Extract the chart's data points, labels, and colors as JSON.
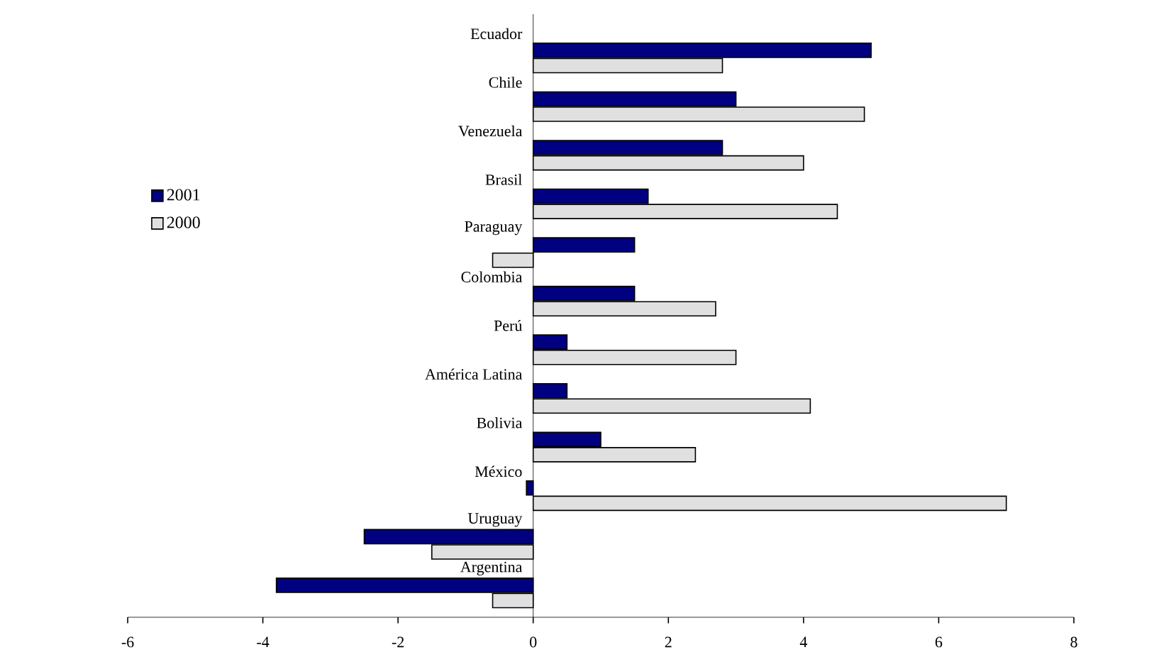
{
  "chart_data": {
    "type": "bar",
    "orientation": "horizontal",
    "categories": [
      "Ecuador",
      "Chile",
      "Venezuela",
      "Brasil",
      "Paraguay",
      "Colombia",
      "Perú",
      "América Latina",
      "Bolivia",
      "México",
      "Uruguay",
      "Argentina"
    ],
    "series": [
      {
        "name": "2001",
        "color": "#000080",
        "values": [
          5.0,
          3.0,
          2.8,
          1.7,
          1.5,
          1.5,
          0.5,
          0.5,
          1.0,
          -0.1,
          -2.5,
          -3.8
        ]
      },
      {
        "name": "2000",
        "color": "#e0e0e0",
        "values": [
          2.8,
          4.9,
          4.0,
          4.5,
          -0.6,
          2.7,
          3.0,
          4.1,
          2.4,
          7.0,
          -1.5,
          -0.6
        ]
      }
    ],
    "xlim": [
      -6,
      8
    ],
    "xticks": [
      -6,
      -4,
      -2,
      0,
      2,
      4,
      6,
      8
    ],
    "grid": false,
    "legend": "left"
  }
}
